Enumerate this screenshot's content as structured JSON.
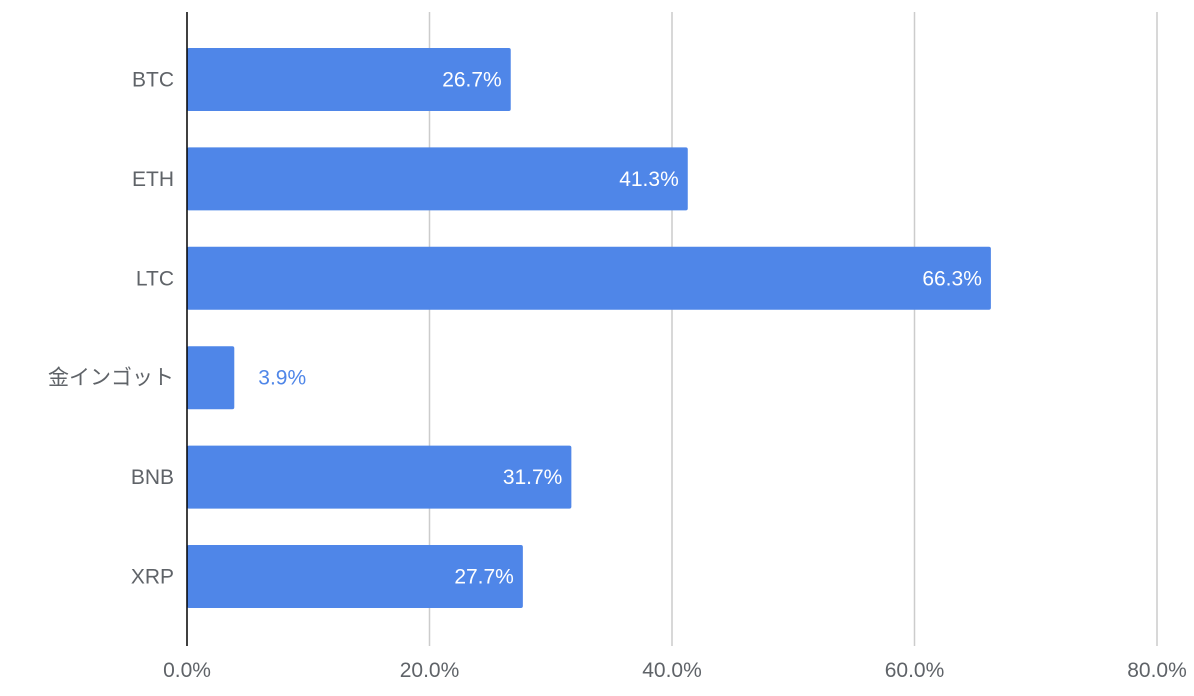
{
  "chart_data": {
    "type": "bar",
    "orientation": "horizontal",
    "categories": [
      "BTC",
      "ETH",
      "LTC",
      "金インゴット",
      "BNB",
      "XRP"
    ],
    "values": [
      26.7,
      41.3,
      66.3,
      3.9,
      31.7,
      27.7
    ],
    "data_labels": [
      "26.7%",
      "41.3%",
      "66.3%",
      "3.9%",
      "31.7%",
      "27.7%"
    ],
    "x_ticks": [
      "0.0%",
      "20.0%",
      "40.0%",
      "60.0%",
      "80.0%"
    ],
    "xlim": [
      0,
      80
    ],
    "grid": true,
    "legend": "none",
    "title": "",
    "xlabel": "",
    "ylabel": "",
    "colors": {
      "bar": "#4f86e8",
      "label_inside": "#ffffff",
      "label_outside": "#4f86e8",
      "grid": "#cccccc",
      "axis": "#000000",
      "text": "#5f6368"
    }
  }
}
